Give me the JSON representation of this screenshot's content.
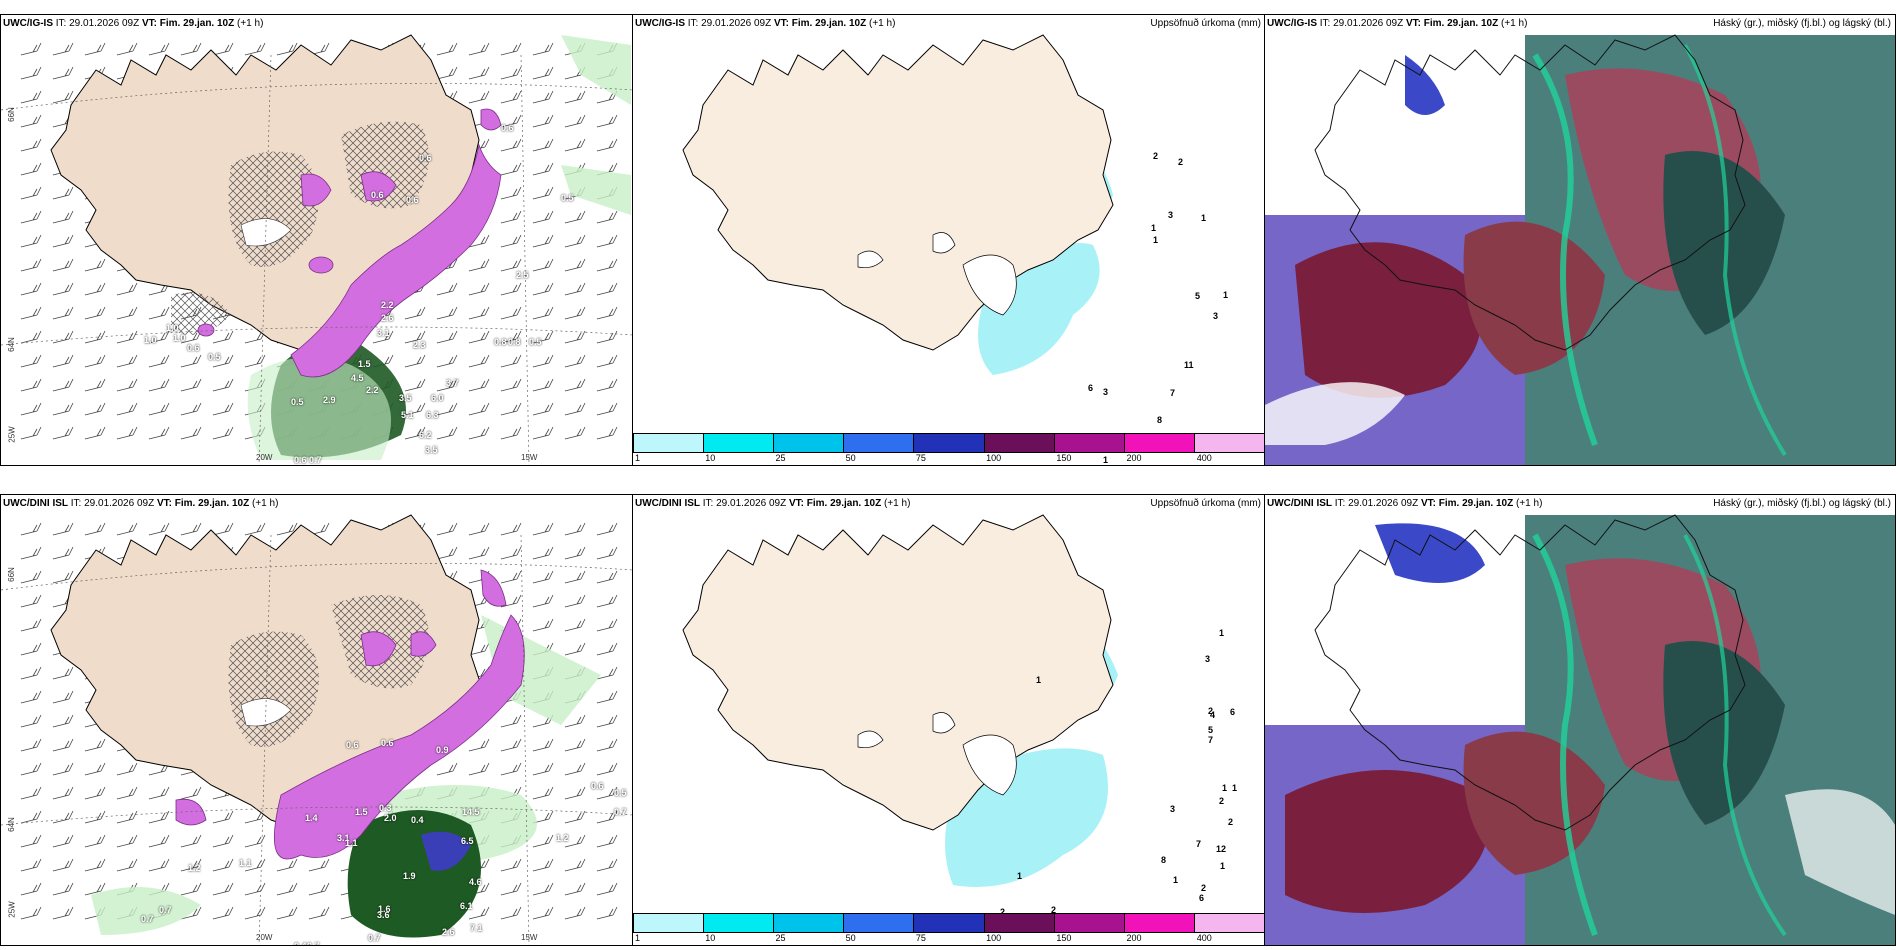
{
  "palette": {
    "land": "#efdccb",
    "land_fill_precip": "#f9eddf",
    "purple": "#d36ee0",
    "green_light": "#c7efc7",
    "green_dark": "#1e5a23",
    "precip_cyan": "#a8f2f7"
  },
  "panels": {
    "top_left": {
      "model": "UWC/IG-IS",
      "it_label": "IT:",
      "it": "29.01.2026 09Z",
      "vt_label": "VT:",
      "vt": "Fim. 29.jan. 10Z",
      "lead": "(+1 h)",
      "lat_labels": [
        "66N",
        "64N",
        "25W"
      ],
      "lon_labels": [
        "20W",
        "15W"
      ],
      "values": [
        "0.6",
        "0.6",
        "0.6",
        "0.6",
        "0.5",
        "2.5",
        "1.0",
        "1.0",
        "0.5",
        "0.6",
        "2.2",
        "2.6",
        "3.1",
        "2.3",
        "1.5",
        "0.8",
        "0.8",
        "0.5",
        "2.2",
        "4.5",
        "2.9",
        "0.5",
        "3.7",
        "6.0",
        "3.5",
        "6.2",
        "3.5",
        "0.6",
        "0.7",
        "1.0",
        "6.3",
        "5.1"
      ]
    },
    "top_mid": {
      "model": "UWC/IG-IS",
      "it_label": "IT:",
      "it": "29.01.2026 09Z",
      "vt_label": "VT:",
      "vt": "Fim. 29.jan. 10Z",
      "lead": "(+1 h)",
      "title_right": "Uppsöfnuð úrkoma (mm)",
      "values": [
        "2",
        "2",
        "3",
        "1",
        "1",
        "1",
        "3",
        "5",
        "1",
        "11",
        "7",
        "8",
        "6",
        "1",
        "3"
      ]
    },
    "top_right": {
      "model": "UWC/IG-IS",
      "it_label": "IT:",
      "it": "29.01.2026 09Z",
      "vt_label": "VT:",
      "vt": "Fim. 29.jan. 10Z",
      "lead": "(+1 h)",
      "title_right": "Háský (gr.), miðský (fj.bl.) og lágský (bl.)"
    },
    "bottom_left": {
      "model": "UWC/DINI ISL",
      "it_label": "IT:",
      "it": "29.01.2026 09Z",
      "vt_label": "VT:",
      "vt": "Fim. 29.jan. 10Z",
      "lead": "(+1 h)",
      "lat_labels": [
        "66N",
        "64N",
        "25W"
      ],
      "lon_labels": [
        "20W",
        "15W"
      ],
      "values": [
        "0.6",
        "0.6",
        "0.9",
        "1.4",
        "1.5",
        "2.0",
        "0.3",
        "0.4",
        "3.1",
        "1.1",
        "0.6",
        "0.5",
        "0.7",
        "1.2",
        "1.1",
        "1.2",
        "0.7",
        "0.7",
        "1.9",
        "6.5",
        "4.6",
        "6.1",
        "7.1",
        "2.6",
        "0.7",
        "1.6",
        "3.6",
        "14.5",
        "0.4",
        "0.7"
      ]
    },
    "bottom_mid": {
      "model": "UWC/DINI ISL",
      "it_label": "IT:",
      "it": "29.01.2026 09Z",
      "vt_label": "VT:",
      "vt": "Fim. 29.jan. 10Z",
      "lead": "(+1 h)",
      "title_right": "Uppsöfnuð úrkoma (mm)",
      "values": [
        "1",
        "3",
        "1",
        "2",
        "4",
        "6",
        "5",
        "7",
        "1",
        "1",
        "2",
        "2",
        "3",
        "8",
        "7",
        "12",
        "1",
        "1",
        "2",
        "6",
        "2",
        "1",
        "2",
        "1"
      ]
    },
    "bottom_right": {
      "model": "UWC/DINI ISL",
      "it_label": "IT:",
      "it": "29.01.2026 09Z",
      "vt_label": "VT:",
      "vt": "Fim. 29.jan. 10Z",
      "lead": "(+1 h)",
      "title_right": "Háský (gr.), miðský (fj.bl.) og lágský (bl.)"
    }
  },
  "colorbar": {
    "ticks": [
      "1",
      "10",
      "25",
      "50",
      "75",
      "100",
      "150",
      "200",
      "400"
    ],
    "colors": [
      "#bdf7fb",
      "#00eaf0",
      "#00c3ec",
      "#2e6ff0",
      "#2232b8",
      "#6b0f5a",
      "#a8128e",
      "#f112b9",
      "#f5b6ef"
    ]
  }
}
